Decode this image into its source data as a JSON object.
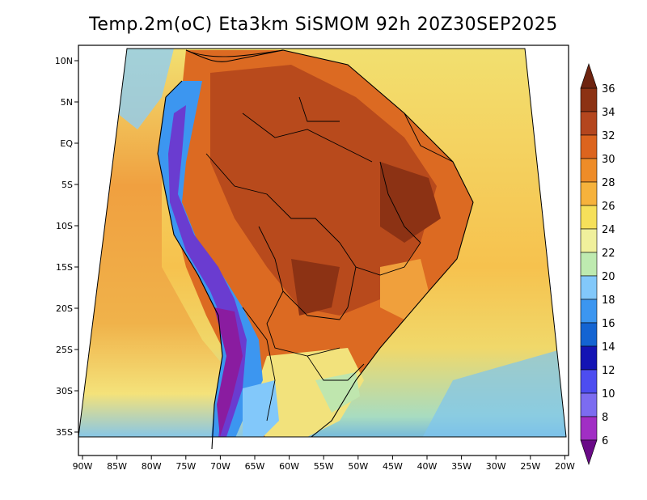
{
  "title": "Temp.2m(oC) Eta3km SiSMOM 92h 20Z30SEP2025",
  "map": {
    "variable": "2m temperature",
    "units": "oC",
    "model": "Eta3km",
    "lat_labels": [
      "10N",
      "5N",
      "EQ",
      "5S",
      "10S",
      "15S",
      "20S",
      "25S",
      "30S",
      "35S"
    ],
    "lon_labels": [
      "90W",
      "85W",
      "80W",
      "75W",
      "70W",
      "65W",
      "60W",
      "55W",
      "50W",
      "45W",
      "40W",
      "35W",
      "30W",
      "25W",
      "20W"
    ]
  },
  "colorbar": {
    "levels": [
      "6",
      "8",
      "10",
      "12",
      "14",
      "16",
      "18",
      "20",
      "22",
      "24",
      "26",
      "28",
      "30",
      "32",
      "34",
      "36"
    ],
    "colors": [
      "#6a0a87",
      "#a12ec4",
      "#7c6cf0",
      "#4d4df0",
      "#1414b4",
      "#1464d2",
      "#3c96f0",
      "#82c8fa",
      "#beeab0",
      "#f0f09c",
      "#f6e05a",
      "#f6b23c",
      "#ee8c28",
      "#dc641e",
      "#b4461e",
      "#8c3214",
      "#6e2410"
    ]
  }
}
